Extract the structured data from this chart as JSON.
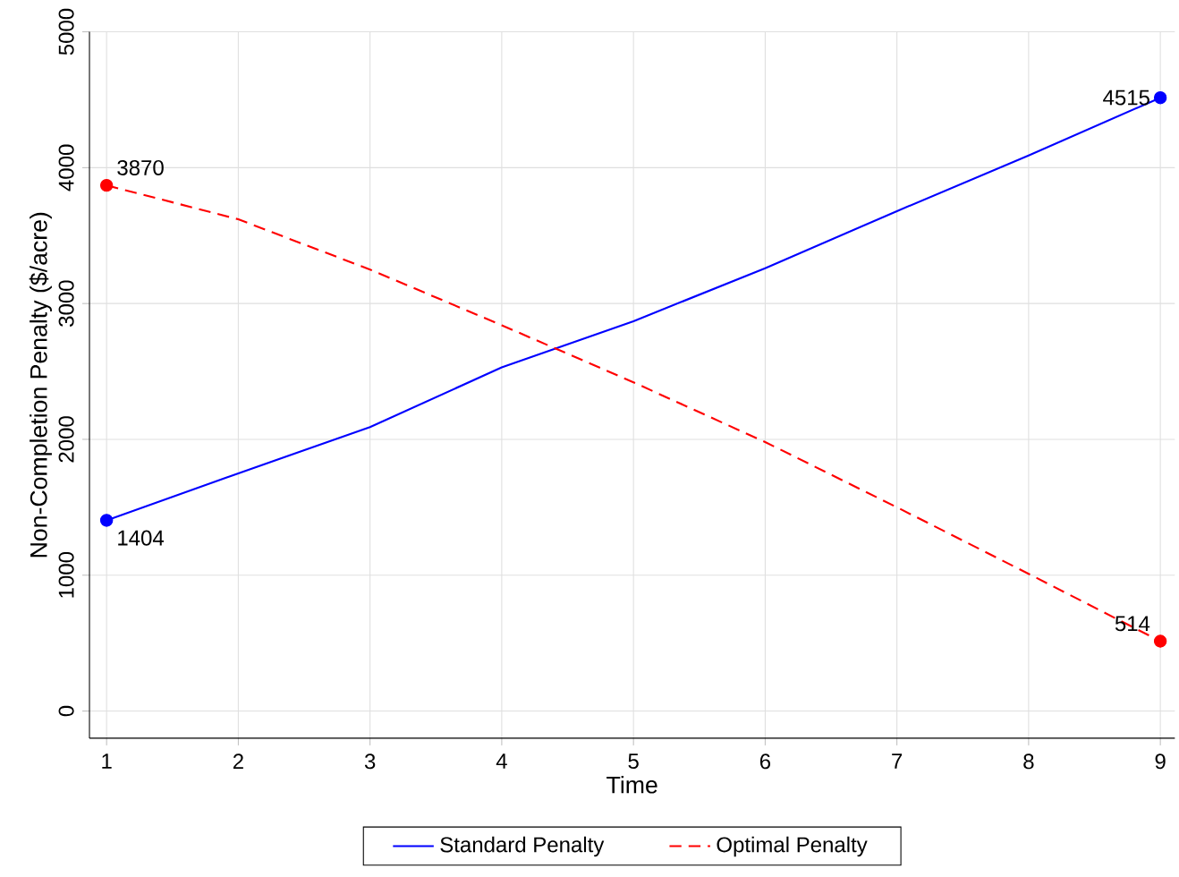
{
  "chart_data": {
    "type": "line",
    "xlabel": "Time",
    "ylabel": "Non-Completion Penalty ($/acre)",
    "x": [
      1,
      2,
      3,
      4,
      5,
      6,
      7,
      8,
      9
    ],
    "series": [
      {
        "name": "Standard Penalty",
        "color": "#0000ff",
        "line_style": "solid",
        "values": [
          1404,
          1750,
          2090,
          2530,
          2870,
          3260,
          3680,
          4090,
          4515
        ]
      },
      {
        "name": "Optimal Penalty",
        "color": "#ff0000",
        "line_style": "dashed",
        "values": [
          3870,
          3620,
          3250,
          2840,
          2420,
          1980,
          1500,
          1010,
          514
        ]
      },
      {
        "type": "scatter",
        "color": "#0000ff",
        "marker": "circle",
        "values": [
          1404,
          null,
          null,
          null,
          null,
          null,
          null,
          null,
          4515
        ],
        "value_labels": [
          "1404",
          null,
          null,
          null,
          null,
          null,
          null,
          null,
          "4515"
        ]
      },
      {
        "type": "scatter",
        "color": "#ff0000",
        "marker": "circle",
        "values": [
          3870,
          null,
          null,
          null,
          null,
          null,
          null,
          null,
          514
        ],
        "value_labels": [
          "3870",
          null,
          null,
          null,
          null,
          null,
          null,
          null,
          "514"
        ]
      }
    ],
    "xlim": [
      0.87,
      9.11
    ],
    "ylim": [
      -200,
      5000
    ],
    "xticks": [
      1,
      2,
      3,
      4,
      5,
      6,
      7,
      8,
      9
    ],
    "yticks": [
      0,
      1000,
      2000,
      3000,
      4000,
      5000
    ],
    "grid": true,
    "legend": "bottom"
  }
}
